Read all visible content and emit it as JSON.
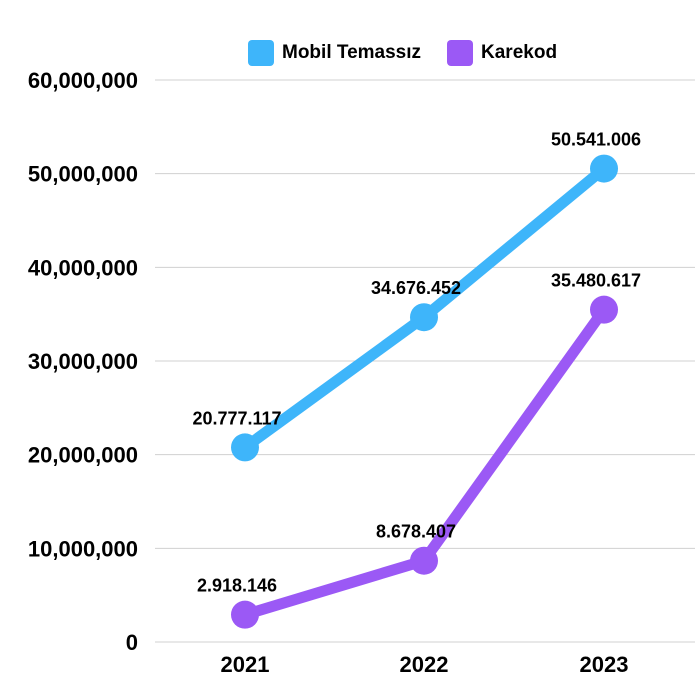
{
  "chart_data": {
    "type": "line",
    "categories": [
      "2021",
      "2022",
      "2023"
    ],
    "series": [
      {
        "name": "Mobil Temassız",
        "color": "#3EB5FA",
        "values": [
          20777117,
          34676452,
          50541006
        ],
        "labels": [
          "20.777.117",
          "34.676.452",
          "50.541.006"
        ]
      },
      {
        "name": "Karekod",
        "color": "#9B59F5",
        "values": [
          2918146,
          8678407,
          35480617
        ],
        "labels": [
          "2.918.146",
          "8.678.407",
          "35.480.617"
        ]
      }
    ],
    "ylim": [
      0,
      60000000
    ],
    "yticks": [
      0,
      10000000,
      20000000,
      30000000,
      40000000,
      50000000,
      60000000
    ],
    "ytick_labels": [
      "0",
      "10,000,000",
      "20,000,000",
      "30,000,000",
      "40,000,000",
      "50,000,000",
      "60,000,000"
    ],
    "grid": true,
    "legend_position": "top-right"
  }
}
